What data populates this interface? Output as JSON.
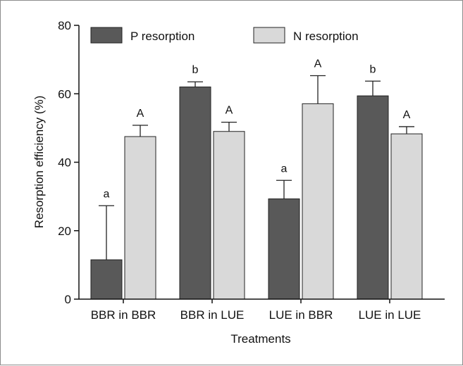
{
  "chart_data": {
    "type": "bar",
    "xlabel": "Treatments",
    "ylabel": "Resorption efficiency (%)",
    "ylim": [
      0,
      80
    ],
    "yticks": [
      0,
      20,
      40,
      60,
      80
    ],
    "categories": [
      "BBR in BBR",
      "BBR in LUE",
      "LUE in BBR",
      "LUE in LUE"
    ],
    "series": [
      {
        "name": "P resorption",
        "color": "#595959",
        "values": [
          11.5,
          62.0,
          29.3,
          59.4
        ],
        "errors": [
          15.8,
          1.5,
          5.4,
          4.3
        ],
        "labels": [
          "a",
          "b",
          "a",
          "b"
        ]
      },
      {
        "name": "N resorption",
        "color": "#d9d9d9",
        "values": [
          47.5,
          49.0,
          57.1,
          48.3
        ],
        "errors": [
          3.3,
          2.7,
          8.2,
          2.1
        ],
        "labels": [
          "A",
          "A",
          "A",
          "A"
        ]
      }
    ],
    "legend_position": "top",
    "grid": false
  }
}
